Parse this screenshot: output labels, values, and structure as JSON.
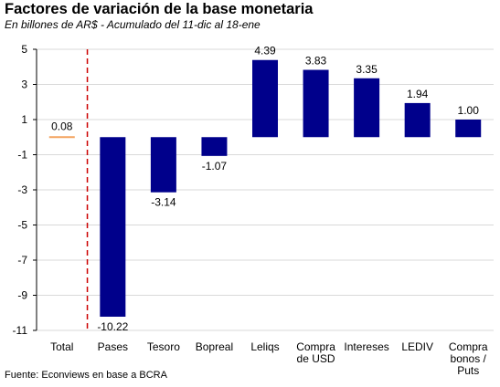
{
  "header": {
    "title": "Factores de variación de la base monetaria",
    "subtitle": "En billones de AR$  - Acumulado del 11-dic al 18-ene"
  },
  "footer": {
    "source": "Fuente: Econviews en base a BCRA"
  },
  "chart_data": {
    "type": "bar",
    "title": "Factores de variación de la base monetaria",
    "subtitle": "En billones de AR$  - Acumulado del 11-dic al 18-ene",
    "xlabel": "",
    "ylabel": "",
    "ylim": [
      -11,
      5
    ],
    "yticks": [
      5,
      3,
      1,
      -1,
      -3,
      -5,
      -7,
      -9,
      -11
    ],
    "grid": "horizontal",
    "legend": "none",
    "categories": [
      [
        "Total"
      ],
      [
        "Pases"
      ],
      [
        "Tesoro"
      ],
      [
        "Bopreal"
      ],
      [
        "Leliqs"
      ],
      [
        "Compra",
        "de USD"
      ],
      [
        "Intereses"
      ],
      [
        "LEDIV"
      ],
      [
        "Compra",
        "bonos /",
        "Puts"
      ]
    ],
    "values": [
      0.08,
      -10.22,
      -3.14,
      -1.07,
      4.39,
      3.83,
      3.35,
      1.94,
      1.0
    ],
    "value_labels": [
      "0.08",
      "-10.22",
      "-3.14",
      "-1.07",
      "4.39",
      "3.83",
      "3.35",
      "1.94",
      "1.00"
    ],
    "colors": {
      "bar": "#00008b",
      "total_bar": "#f4a460",
      "separator": "#cc0000",
      "grid": "#d9d9d9"
    }
  }
}
